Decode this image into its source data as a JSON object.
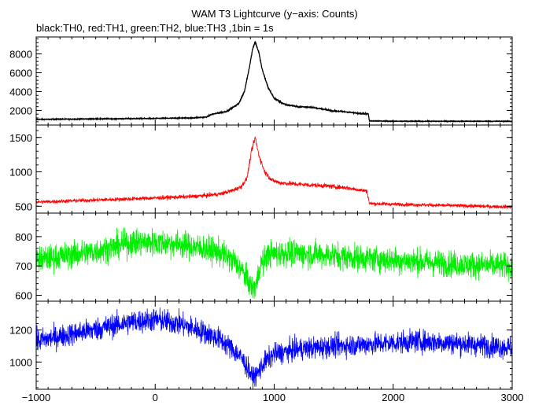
{
  "chart_data": {
    "type": "line",
    "title": "WAM T3 Lightcurve (y−axis: Counts)",
    "subtitle": "black:TH0, red:TH1, green:TH2, blue:TH3 ,1bin = 1s",
    "xlabel": "",
    "ylabel": "",
    "xlim": [
      -1000,
      3000
    ],
    "x_ticks": [
      -1000,
      0,
      1000,
      2000,
      3000
    ],
    "x_tick_labels": [
      "−1000",
      "0",
      "1000",
      "2000",
      "3000"
    ],
    "grid": false,
    "panels": [
      {
        "name": "TH0",
        "color": "#000000",
        "ylim": [
          450,
          9800
        ],
        "y_ticks": [
          2000,
          4000,
          6000,
          8000
        ],
        "y_tick_labels": [
          "2000",
          "4000",
          "6000",
          "8000"
        ],
        "noise": 90,
        "curve": [
          [
            -1000,
            1050
          ],
          [
            -500,
            1100
          ],
          [
            0,
            1150
          ],
          [
            300,
            1200
          ],
          [
            430,
            1300
          ],
          [
            480,
            1600
          ],
          [
            600,
            1900
          ],
          [
            650,
            2300
          ],
          [
            700,
            2700
          ],
          [
            750,
            4000
          ],
          [
            790,
            6500
          ],
          [
            820,
            8600
          ],
          [
            840,
            9300
          ],
          [
            870,
            8200
          ],
          [
            900,
            6300
          ],
          [
            950,
            4400
          ],
          [
            1000,
            3300
          ],
          [
            1050,
            2900
          ],
          [
            1100,
            2600
          ],
          [
            1200,
            2400
          ],
          [
            1300,
            2350
          ],
          [
            1400,
            2150
          ],
          [
            1500,
            1950
          ],
          [
            1600,
            1850
          ],
          [
            1700,
            1700
          ],
          [
            1790,
            1650
          ],
          [
            1800,
            900
          ],
          [
            2000,
            850
          ],
          [
            2500,
            850
          ],
          [
            3000,
            850
          ]
        ]
      },
      {
        "name": "TH1",
        "color": "#ff0000",
        "ylim": [
          400,
          1680
        ],
        "y_ticks": [
          500,
          1000,
          1500
        ],
        "y_tick_labels": [
          "500",
          "1000",
          "1500"
        ],
        "noise": 20,
        "curve": [
          [
            -1000,
            560
          ],
          [
            -500,
            590
          ],
          [
            0,
            620
          ],
          [
            300,
            640
          ],
          [
            450,
            660
          ],
          [
            550,
            680
          ],
          [
            650,
            730
          ],
          [
            720,
            780
          ],
          [
            770,
            900
          ],
          [
            810,
            1300
          ],
          [
            840,
            1500
          ],
          [
            870,
            1250
          ],
          [
            920,
            1000
          ],
          [
            980,
            880
          ],
          [
            1050,
            840
          ],
          [
            1200,
            820
          ],
          [
            1400,
            800
          ],
          [
            1600,
            770
          ],
          [
            1780,
            720
          ],
          [
            1800,
            540
          ],
          [
            2000,
            530
          ],
          [
            2500,
            510
          ],
          [
            3000,
            490
          ]
        ]
      },
      {
        "name": "TH2",
        "color": "#00ee00",
        "ylim": [
          580,
          880
        ],
        "y_ticks": [
          600,
          700,
          800
        ],
        "y_tick_labels": [
          "600",
          "700",
          "800"
        ],
        "noise": 32,
        "curve": [
          [
            -1000,
            720
          ],
          [
            -500,
            750
          ],
          [
            -200,
            780
          ],
          [
            0,
            780
          ],
          [
            200,
            775
          ],
          [
            400,
            760
          ],
          [
            550,
            745
          ],
          [
            650,
            720
          ],
          [
            720,
            690
          ],
          [
            780,
            650
          ],
          [
            820,
            620
          ],
          [
            850,
            640
          ],
          [
            880,
            700
          ],
          [
            950,
            740
          ],
          [
            1100,
            745
          ],
          [
            1300,
            740
          ],
          [
            1500,
            735
          ],
          [
            1800,
            725
          ],
          [
            2200,
            715
          ],
          [
            2600,
            705
          ],
          [
            3000,
            700
          ]
        ]
      },
      {
        "name": "TH3",
        "color": "#0000ff",
        "ylim": [
          830,
          1380
        ],
        "y_ticks": [
          1000,
          1200
        ],
        "y_tick_labels": [
          "1000",
          "1200"
        ],
        "noise": 50,
        "curve": [
          [
            -1000,
            1130
          ],
          [
            -600,
            1190
          ],
          [
            -200,
            1250
          ],
          [
            0,
            1265
          ],
          [
            200,
            1240
          ],
          [
            400,
            1190
          ],
          [
            550,
            1140
          ],
          [
            650,
            1080
          ],
          [
            720,
            1030
          ],
          [
            780,
            960
          ],
          [
            820,
            900
          ],
          [
            860,
            930
          ],
          [
            920,
            1000
          ],
          [
            1000,
            1050
          ],
          [
            1200,
            1080
          ],
          [
            1500,
            1100
          ],
          [
            2000,
            1120
          ],
          [
            2200,
            1130
          ],
          [
            2500,
            1120
          ],
          [
            3000,
            1090
          ]
        ]
      }
    ]
  }
}
